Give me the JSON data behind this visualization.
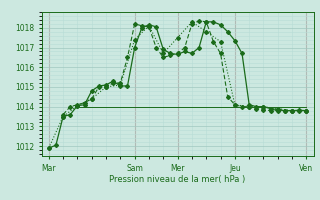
{
  "background_color": "#cce8e0",
  "grid_color_minor": "#b8ddd6",
  "grid_color_major": "#a0c8c0",
  "line_color": "#1a6b1a",
  "ylabel": "Pression niveau de la mer( hPa )",
  "ylim": [
    1011.5,
    1018.8
  ],
  "yticks": [
    1012,
    1013,
    1014,
    1015,
    1016,
    1017,
    1018
  ],
  "xtick_labels": [
    "Mar",
    "",
    "Sam",
    "Mer",
    "",
    "Jeu",
    "",
    "Ven"
  ],
  "vline_positions": [
    0,
    6,
    9,
    13,
    18
  ],
  "vline_color": "#d4a0a0",
  "line1": {
    "x": [
      0,
      0.5,
      1,
      1.5,
      2,
      2.5,
      3,
      3.5,
      4,
      4.5,
      5,
      5.5,
      6,
      6.5,
      7,
      7.5,
      8,
      8.5,
      9,
      9.5,
      10,
      10.5,
      11,
      11.5,
      12,
      12.5,
      13,
      13.5,
      14,
      14.5,
      15,
      15.5,
      16,
      16.5,
      17,
      17.5,
      18
    ],
    "y": [
      1011.9,
      1012.05,
      1013.5,
      1013.6,
      1014.05,
      1014.1,
      1014.8,
      1015.05,
      1015.1,
      1015.3,
      1015.05,
      1015.05,
      1017.0,
      1018.0,
      1018.15,
      1018.05,
      1016.9,
      1016.7,
      1016.65,
      1016.8,
      1016.7,
      1017.0,
      1018.3,
      1018.3,
      1018.15,
      1017.8,
      1017.35,
      1016.7,
      1014.1,
      1014.0,
      1014.0,
      1013.9,
      1013.85,
      1013.8,
      1013.8,
      1013.82,
      1013.8
    ]
  },
  "line2": {
    "x": [
      1,
      1.5,
      2,
      2.5,
      3,
      3.5,
      4,
      4.5,
      5,
      5.5,
      6,
      6.5,
      7,
      7.5,
      8,
      8.5,
      9,
      9.5,
      10,
      10.5,
      11,
      11.5,
      12,
      12.5,
      13,
      13.5,
      14,
      14.5,
      15,
      15.5,
      16,
      16.5,
      17,
      17.5,
      18
    ],
    "y": [
      1013.6,
      1014.0,
      1014.1,
      1014.2,
      1014.4,
      1015.0,
      1015.0,
      1015.2,
      1015.2,
      1016.5,
      1018.2,
      1018.1,
      1018.05,
      1017.0,
      1016.5,
      1016.6,
      1016.7,
      1017.0,
      1018.2,
      1018.35,
      1018.3,
      1017.3,
      1016.7,
      1014.5,
      1014.1,
      1014.0,
      1014.0,
      1013.9,
      1013.85,
      1013.8,
      1013.8,
      1013.8,
      1013.8,
      1013.8,
      1013.8
    ]
  },
  "line3": {
    "x": [
      0,
      1,
      2,
      3,
      4,
      5,
      6,
      7,
      8,
      9,
      10,
      11,
      12,
      13,
      14,
      15,
      16,
      17,
      18
    ],
    "y": [
      1011.9,
      1013.5,
      1014.05,
      1014.4,
      1015.0,
      1015.1,
      1017.4,
      1018.1,
      1016.7,
      1017.5,
      1018.3,
      1017.8,
      1017.3,
      1014.1,
      1014.0,
      1014.0,
      1013.9,
      1013.8,
      1013.8
    ]
  },
  "line_flat": {
    "x": [
      2,
      18
    ],
    "y": [
      1014.0,
      1014.0
    ]
  }
}
